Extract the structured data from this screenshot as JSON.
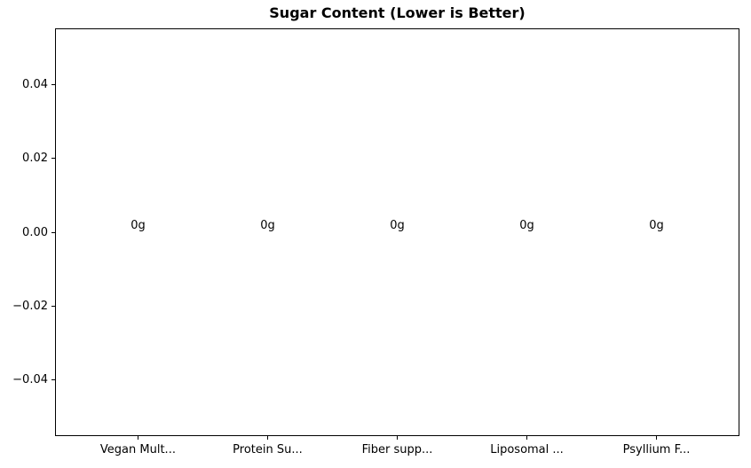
{
  "chart_data": {
    "type": "bar",
    "title": "Sugar Content (Lower is Better)",
    "categories": [
      "Vegan Mult...",
      "Protein Su...",
      "Fiber supp...",
      "Liposomal ...",
      "Psyllium F..."
    ],
    "values": [
      0,
      0,
      0,
      0,
      0
    ],
    "bar_labels": [
      "0g",
      "0g",
      "0g",
      "0g",
      "0g"
    ],
    "xlabel": "",
    "ylabel": "",
    "ylim": [
      -0.0554,
      0.0554
    ],
    "xlim": [
      -0.64,
      4.64
    ],
    "yticks": [
      0.04,
      0.02,
      0.0,
      -0.02,
      -0.04
    ],
    "ytick_labels": [
      "0.04",
      "0.02",
      "0.00",
      "−0.02",
      "−0.04"
    ],
    "grid": false,
    "legend_position": "none",
    "text_color": "#000000",
    "spine_color": "#000000",
    "background_color": "#ffffff"
  }
}
